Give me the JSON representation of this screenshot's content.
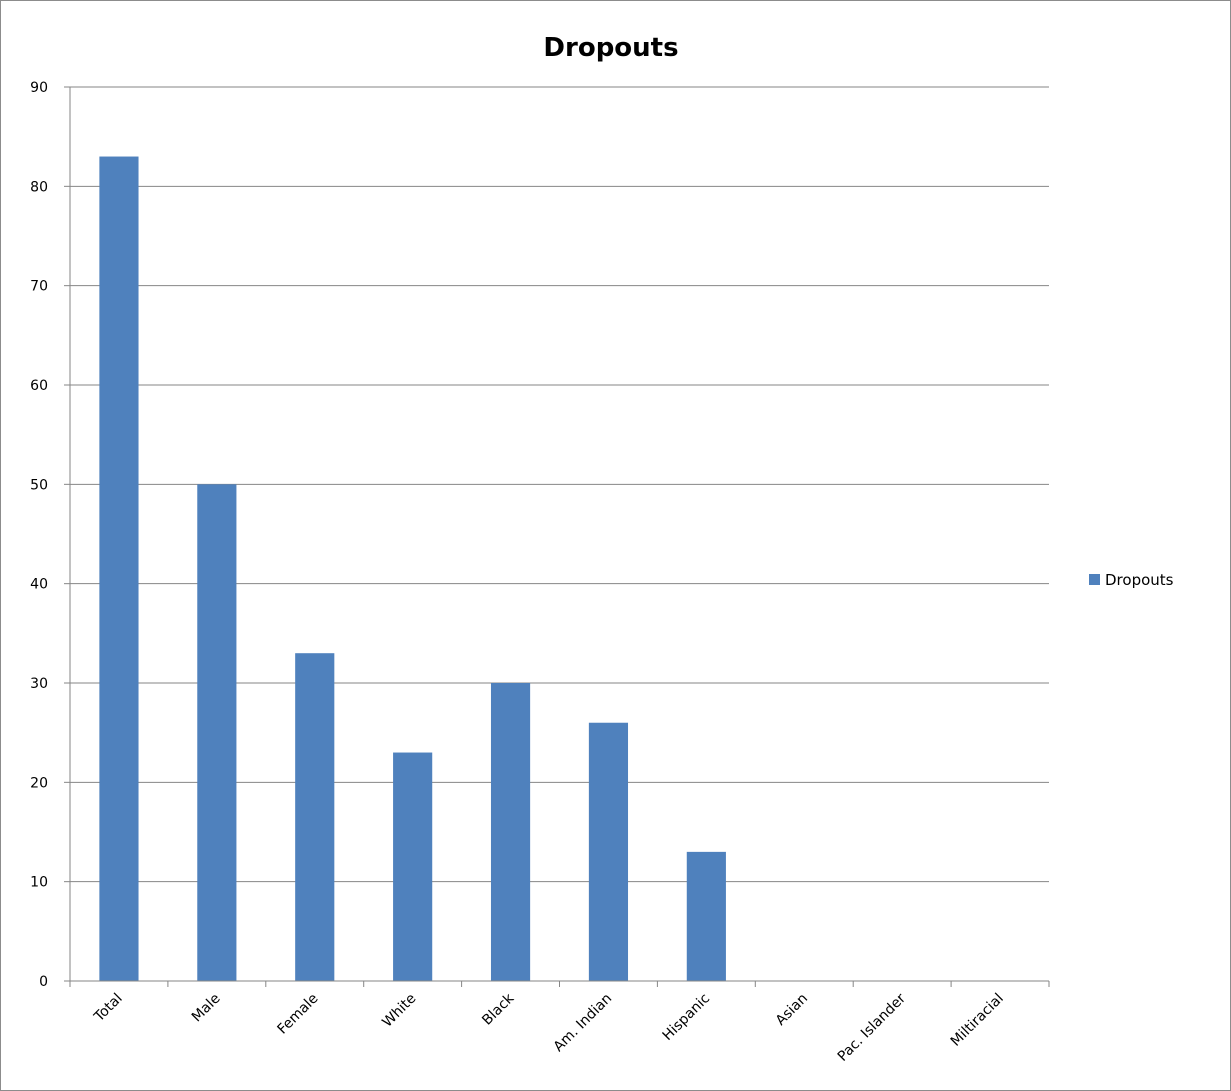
{
  "chart_data": {
    "type": "bar",
    "title": "Dropouts",
    "xlabel": "",
    "ylabel": "",
    "categories": [
      "Total",
      "Male",
      "Female",
      "White",
      "Black",
      "Am. Indian",
      "Hispanic",
      "Asian",
      "Pac. Islander",
      "Miltiracial"
    ],
    "series": [
      {
        "name": "Dropouts",
        "values": [
          83,
          50,
          33,
          23,
          30,
          26,
          13,
          0,
          0,
          0
        ]
      }
    ],
    "ylim": [
      0,
      90
    ],
    "yticks": [
      0,
      10,
      20,
      30,
      40,
      50,
      60,
      70,
      80,
      90
    ],
    "grid": true,
    "legend_position": "right",
    "bar_color": "#4F81BD"
  }
}
